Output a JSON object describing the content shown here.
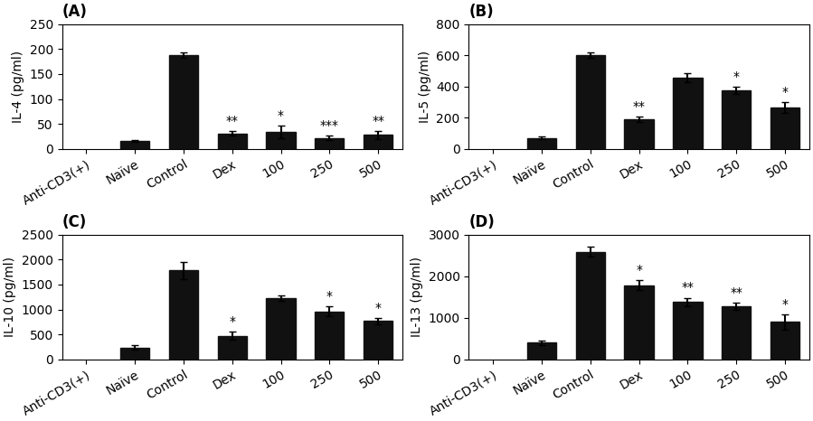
{
  "chart_data": [
    {
      "type": "bar",
      "title": "(A)",
      "y_label": "IL-4 (pg/ml)",
      "categories": [
        "Anti-CD3(+)",
        "Naïve",
        "Control",
        "Dex",
        "100",
        "250",
        "500"
      ],
      "values": [
        null,
        16,
        188,
        31,
        34,
        22,
        28
      ],
      "errors": [
        null,
        2,
        5,
        4,
        12,
        5,
        8
      ],
      "annotations": [
        {
          "category": "Dex",
          "text": "**"
        },
        {
          "category": "100",
          "text": "*"
        },
        {
          "category": "250",
          "text": "***"
        },
        {
          "category": "500",
          "text": "**"
        }
      ],
      "color": "#111111",
      "ylim": [
        0,
        250
      ],
      "yticks": [
        0,
        50,
        100,
        150,
        200,
        250
      ]
    },
    {
      "type": "bar",
      "title": "(B)",
      "y_label": "IL-5 (pg/ml)",
      "categories": [
        "Anti-CD3(+)",
        "Naïve",
        "Control",
        "Dex",
        "100",
        "250",
        "500"
      ],
      "values": [
        null,
        70,
        600,
        190,
        455,
        375,
        265
      ],
      "errors": [
        null,
        10,
        18,
        15,
        30,
        25,
        35
      ],
      "annotations": [
        {
          "category": "Dex",
          "text": "**"
        },
        {
          "category": "250",
          "text": "*"
        },
        {
          "category": "500",
          "text": "*"
        }
      ],
      "color": "#111111",
      "ylim": [
        0,
        800
      ],
      "yticks": [
        0,
        200,
        400,
        600,
        800
      ]
    },
    {
      "type": "bar",
      "title": "(C)",
      "y_label": "IL-10 (pg/ml)",
      "categories": [
        "Anti-CD3(+)",
        "Naïve",
        "Control",
        "Dex",
        "100",
        "250",
        "500"
      ],
      "values": [
        null,
        240,
        1780,
        470,
        1230,
        960,
        770
      ],
      "errors": [
        null,
        50,
        170,
        80,
        50,
        100,
        60
      ],
      "annotations": [
        {
          "category": "Dex",
          "text": "*"
        },
        {
          "category": "250",
          "text": "*"
        },
        {
          "category": "500",
          "text": "*"
        }
      ],
      "color": "#111111",
      "ylim": [
        0,
        2500
      ],
      "yticks": [
        0,
        500,
        1000,
        1500,
        2000,
        2500
      ]
    },
    {
      "type": "bar",
      "title": "(D)",
      "y_label": "IL-13 (pg/ml)",
      "categories": [
        "Anti-CD3(+)",
        "Naïve",
        "Control",
        "Dex",
        "100",
        "250",
        "500"
      ],
      "values": [
        null,
        400,
        2580,
        1780,
        1380,
        1280,
        900
      ],
      "errors": [
        null,
        60,
        120,
        120,
        100,
        80,
        180
      ],
      "annotations": [
        {
          "category": "Dex",
          "text": "*"
        },
        {
          "category": "100",
          "text": "**"
        },
        {
          "category": "250",
          "text": "**"
        },
        {
          "category": "500",
          "text": "*"
        }
      ],
      "color": "#111111",
      "ylim": [
        0,
        3000
      ],
      "yticks": [
        0,
        1000,
        2000,
        3000
      ]
    }
  ]
}
